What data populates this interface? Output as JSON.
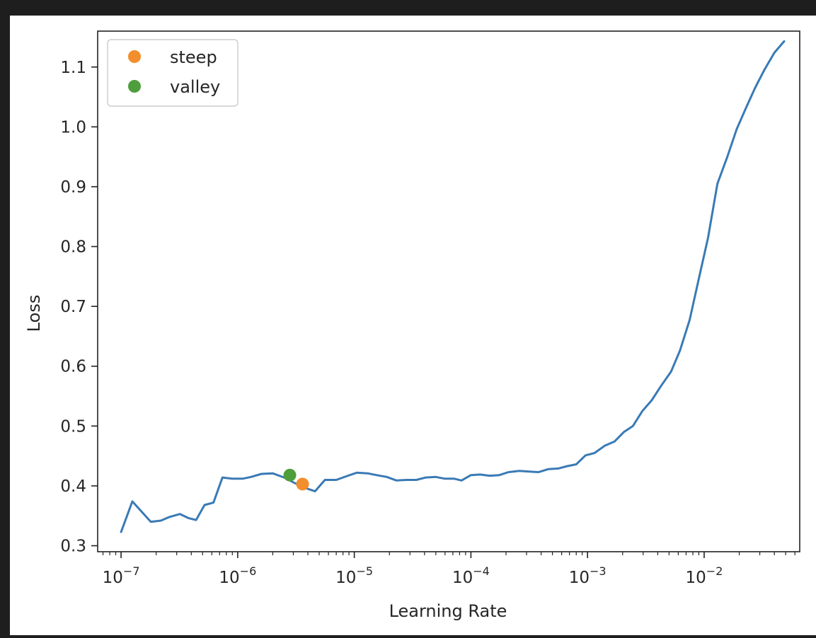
{
  "colors": {
    "line": "#3a7ab5",
    "steep": "#f28e2b",
    "valley": "#4e9e3b",
    "axis": "#222222",
    "background_frame": "#1e1e1e"
  },
  "chart_data": {
    "type": "line",
    "title": "",
    "xlabel": "Learning Rate",
    "ylabel": "Loss",
    "xscale": "log",
    "xlim": [
      6.3e-08,
      0.066
    ],
    "ylim": [
      0.29,
      1.16
    ],
    "grid": false,
    "legend_placement": "top-left",
    "x_ticks": [
      {
        "value": 1e-07,
        "base": "10",
        "exp": "−7"
      },
      {
        "value": 1e-06,
        "base": "10",
        "exp": "−6"
      },
      {
        "value": 1e-05,
        "base": "10",
        "exp": "−5"
      },
      {
        "value": 0.0001,
        "base": "10",
        "exp": "−4"
      },
      {
        "value": 0.001,
        "base": "10",
        "exp": "−3"
      },
      {
        "value": 0.01,
        "base": "10",
        "exp": "−2"
      }
    ],
    "y_ticks": [
      "0.3",
      "0.4",
      "0.5",
      "0.6",
      "0.7",
      "0.8",
      "0.9",
      "1.0",
      "1.1"
    ],
    "series": [
      {
        "points": [
          [
            1e-07,
            0.323
          ],
          [
            1.25e-07,
            0.374
          ],
          [
            1.8e-07,
            0.34
          ],
          [
            2.2e-07,
            0.342
          ],
          [
            2.6e-07,
            0.348
          ],
          [
            3.2e-07,
            0.353
          ],
          [
            3.8e-07,
            0.346
          ],
          [
            4.4e-07,
            0.343
          ],
          [
            5.2e-07,
            0.368
          ],
          [
            6.2e-07,
            0.372
          ],
          [
            7.4e-07,
            0.414
          ],
          [
            9e-07,
            0.412
          ],
          [
            1.1e-06,
            0.412
          ],
          [
            1.3e-06,
            0.415
          ],
          [
            1.6e-06,
            0.42
          ],
          [
            2e-06,
            0.421
          ],
          [
            2.5e-06,
            0.414
          ],
          [
            3e-06,
            0.406
          ],
          [
            3.6e-06,
            0.398
          ],
          [
            4.6e-06,
            0.391
          ],
          [
            5.6e-06,
            0.41
          ],
          [
            7e-06,
            0.41
          ],
          [
            8.8e-06,
            0.417
          ],
          [
            1.05e-05,
            0.422
          ],
          [
            1.3e-05,
            0.421
          ],
          [
            1.55e-05,
            0.418
          ],
          [
            1.9e-05,
            0.415
          ],
          [
            2.3e-05,
            0.409
          ],
          [
            2.8e-05,
            0.41
          ],
          [
            3.4e-05,
            0.41
          ],
          [
            4.1e-05,
            0.414
          ],
          [
            5e-05,
            0.415
          ],
          [
            6e-05,
            0.412
          ],
          [
            7.2e-05,
            0.412
          ],
          [
            8.3e-05,
            0.409
          ],
          [
            0.0001,
            0.418
          ],
          [
            0.00012,
            0.419
          ],
          [
            0.000145,
            0.417
          ],
          [
            0.000175,
            0.418
          ],
          [
            0.00021,
            0.423
          ],
          [
            0.00026,
            0.425
          ],
          [
            0.00031,
            0.424
          ],
          [
            0.00038,
            0.423
          ],
          [
            0.00046,
            0.428
          ],
          [
            0.00056,
            0.429
          ],
          [
            0.00067,
            0.433
          ],
          [
            0.0008,
            0.436
          ],
          [
            0.00096,
            0.451
          ],
          [
            0.00115,
            0.455
          ],
          [
            0.0014,
            0.467
          ],
          [
            0.0017,
            0.474
          ],
          [
            0.00205,
            0.49
          ],
          [
            0.00245,
            0.5
          ],
          [
            0.00295,
            0.525
          ],
          [
            0.00355,
            0.543
          ],
          [
            0.0043,
            0.568
          ],
          [
            0.0052,
            0.591
          ],
          [
            0.0062,
            0.626
          ],
          [
            0.0075,
            0.677
          ],
          [
            0.009,
            0.746
          ],
          [
            0.0108,
            0.815
          ],
          [
            0.013,
            0.905
          ],
          [
            0.0158,
            0.95
          ],
          [
            0.019,
            0.996
          ],
          [
            0.023,
            1.033
          ],
          [
            0.0275,
            1.066
          ],
          [
            0.033,
            1.096
          ],
          [
            0.04,
            1.124
          ],
          [
            0.0485,
            1.143
          ]
        ]
      }
    ],
    "markers": [
      {
        "label": "steep",
        "x": 3.6e-06,
        "y": 0.403
      },
      {
        "label": "valley",
        "x": 2.8e-06,
        "y": 0.418
      }
    ]
  }
}
